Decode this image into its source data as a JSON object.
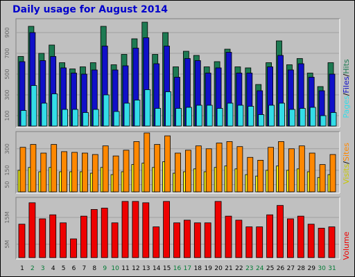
{
  "title": "Daily usage for August 2014",
  "colors": {
    "hits": "#1d7a52",
    "files": "#1010c8",
    "pages": "#33dde8",
    "visits": "#f5f518",
    "sites": "#ff8800",
    "volume": "#ee0000",
    "weekend_day": "#007a33",
    "weekday": "#000000",
    "background": "#c0c0c0"
  },
  "chart_data": [
    {
      "type": "bar",
      "title": "Daily usage for August 2014",
      "ylabel": [
        "Pages",
        "Files",
        "Hits"
      ],
      "categories": [
        "1",
        "2",
        "3",
        "4",
        "5",
        "6",
        "7",
        "8",
        "9",
        "10",
        "11",
        "12",
        "13",
        "14",
        "15",
        "16",
        "17",
        "18",
        "19",
        "20",
        "21",
        "22",
        "23",
        "24",
        "25",
        "26",
        "27",
        "28",
        "29",
        "30",
        "31"
      ],
      "weekend_days": [
        "2",
        "3",
        "9",
        "10",
        "16",
        "17",
        "23",
        "24",
        "30",
        "31"
      ],
      "yticks": [
        100,
        300,
        500,
        700,
        900
      ],
      "ylim": [
        0,
        1020
      ],
      "series": [
        {
          "name": "Hits",
          "values": [
            670,
            960,
            700,
            780,
            610,
            550,
            570,
            610,
            960,
            590,
            690,
            840,
            1000,
            690,
            900,
            570,
            720,
            680,
            570,
            620,
            740,
            570,
            560,
            400,
            610,
            820,
            590,
            650,
            510,
            380,
            610
          ]
        },
        {
          "name": "Files",
          "values": [
            620,
            900,
            630,
            670,
            560,
            510,
            500,
            540,
            770,
            540,
            580,
            750,
            850,
            600,
            770,
            470,
            650,
            630,
            510,
            560,
            710,
            510,
            510,
            340,
            570,
            680,
            540,
            600,
            470,
            340,
            500
          ]
        },
        {
          "name": "Pages",
          "values": [
            150,
            390,
            220,
            310,
            160,
            160,
            130,
            160,
            300,
            140,
            220,
            250,
            350,
            170,
            330,
            170,
            180,
            200,
            200,
            170,
            220,
            200,
            190,
            110,
            200,
            220,
            160,
            170,
            180,
            100,
            130
          ]
        }
      ]
    },
    {
      "type": "bar",
      "ylabel": [
        "Visits",
        "Sites"
      ],
      "categories": [
        "1",
        "2",
        "3",
        "4",
        "5",
        "6",
        "7",
        "8",
        "9",
        "10",
        "11",
        "12",
        "13",
        "14",
        "15",
        "16",
        "17",
        "18",
        "19",
        "20",
        "21",
        "22",
        "23",
        "24",
        "25",
        "26",
        "27",
        "28",
        "29",
        "30",
        "31"
      ],
      "yticks": [
        50,
        150,
        300
      ],
      "ylim": [
        0,
        410
      ],
      "series": [
        {
          "name": "Visits",
          "values": [
            150,
            170,
            140,
            170,
            140,
            140,
            140,
            130,
            170,
            120,
            140,
            190,
            200,
            170,
            210,
            130,
            140,
            160,
            140,
            170,
            180,
            160,
            120,
            110,
            150,
            180,
            150,
            160,
            140,
            100,
            120
          ]
        },
        {
          "name": "Sites",
          "values": [
            310,
            330,
            270,
            330,
            280,
            275,
            270,
            260,
            320,
            250,
            290,
            350,
            410,
            330,
            390,
            270,
            290,
            320,
            300,
            340,
            350,
            315,
            240,
            220,
            310,
            350,
            300,
            320,
            270,
            190,
            260
          ]
        }
      ]
    },
    {
      "type": "bar",
      "ylabel": [
        "Volume"
      ],
      "categories": [
        "1",
        "2",
        "3",
        "4",
        "5",
        "6",
        "7",
        "8",
        "9",
        "10",
        "11",
        "12",
        "13",
        "14",
        "15",
        "16",
        "17",
        "18",
        "19",
        "20",
        "21",
        "22",
        "23",
        "24",
        "25",
        "26",
        "27",
        "28",
        "29",
        "30",
        "31"
      ],
      "yticks": [
        "5M",
        "15M"
      ],
      "ytick_values": [
        5,
        15
      ],
      "unit": "M",
      "ylim": [
        0,
        22
      ],
      "series": [
        {
          "name": "Volume",
          "values": [
            12.5,
            20.5,
            14.5,
            16,
            13,
            7,
            15.5,
            18,
            18.5,
            13,
            21,
            21,
            20.5,
            11.5,
            21,
            13,
            14,
            13,
            13,
            21,
            15.5,
            14,
            11.5,
            11.5,
            16,
            19.5,
            14.5,
            15.5,
            12.5,
            11,
            11.5
          ]
        }
      ]
    }
  ]
}
